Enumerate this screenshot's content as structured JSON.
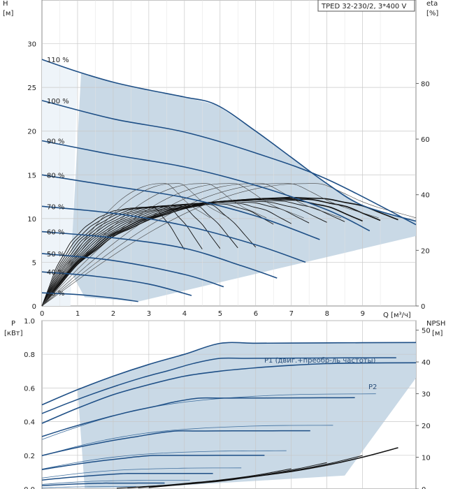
{
  "chart_data": [
    {
      "type": "line",
      "title": "TPED 32-230/2, 3*400 V",
      "y_label_top": "H",
      "y_label_unit": "[м]",
      "y2_label_top": "eta",
      "y2_label_unit": "[%]",
      "x_label": "Q [м³/ч]",
      "xlim": [
        0,
        10.5
      ],
      "ylim": [
        0,
        35
      ],
      "y2lim": [
        0,
        110
      ],
      "x_ticks": [
        0,
        1,
        2,
        3,
        4,
        5,
        6,
        7,
        8,
        9
      ],
      "y_ticks": [
        0,
        5,
        10,
        15,
        20,
        25,
        30
      ],
      "y2_ticks": [
        0,
        20,
        40,
        60,
        80
      ],
      "grid": true,
      "operating_area_color": "#c9d9e6",
      "head_curve_color": "#1e4f86",
      "eff_curve_color": "#111111",
      "series": [
        {
          "name": "110 %",
          "x": [
            0,
            1,
            2,
            3,
            4,
            4.9,
            6,
            7,
            8,
            9,
            10.5
          ],
          "y": [
            28.2,
            26.8,
            25.6,
            24.7,
            23.9,
            23.0,
            20.0,
            17.0,
            14.0,
            11.5,
            9.7
          ]
        },
        {
          "name": "100 %",
          "x": [
            0,
            2,
            4,
            6,
            8,
            10.5
          ],
          "y": [
            23.5,
            21.4,
            19.9,
            17.5,
            14.5,
            9.3
          ]
        },
        {
          "name": "90 %",
          "x": [
            0,
            2,
            4,
            6,
            8,
            9.2
          ],
          "y": [
            18.9,
            17.3,
            15.9,
            13.8,
            11.0,
            8.6
          ]
        },
        {
          "name": "80 %",
          "x": [
            0,
            2,
            4,
            6,
            7.8
          ],
          "y": [
            15.0,
            13.7,
            12.4,
            10.3,
            7.6
          ]
        },
        {
          "name": "70 %",
          "x": [
            0,
            2,
            4,
            6,
            7.4
          ],
          "y": [
            11.4,
            10.6,
            9.2,
            7.0,
            5.0
          ]
        },
        {
          "name": "60 %",
          "x": [
            0,
            2,
            4,
            5.6,
            6.6
          ],
          "y": [
            8.5,
            7.8,
            6.6,
            4.6,
            3.2
          ]
        },
        {
          "name": "50 %",
          "x": [
            0,
            2,
            4,
            5.1
          ],
          "y": [
            6.0,
            5.2,
            3.6,
            2.2
          ]
        },
        {
          "name": "40 %",
          "x": [
            0,
            1.5,
            3,
            4.2
          ],
          "y": [
            3.9,
            3.4,
            2.5,
            1.2
          ]
        },
        {
          "name": "25 %",
          "x": [
            0,
            1,
            2,
            2.7
          ],
          "y": [
            1.5,
            1.3,
            0.9,
            0.5
          ]
        }
      ],
      "efficiency_max_curve": {
        "x": [
          0,
          1,
          2,
          3,
          4,
          5,
          6,
          7,
          8,
          9,
          10
        ],
        "eta": [
          0,
          15,
          25,
          31,
          35,
          37.5,
          38.5,
          39,
          38.5,
          36,
          31
        ]
      }
    },
    {
      "type": "line",
      "y_label_top": "P",
      "y_label_unit": "[кВт]",
      "y2_label_top": "NPSH",
      "y2_label_unit": "[м]",
      "xlim": [
        0,
        10.5
      ],
      "ylim": [
        0,
        1.0
      ],
      "y2lim": [
        0,
        53
      ],
      "y_ticks": [
        0.0,
        0.2,
        0.4,
        0.6,
        0.8,
        1.0
      ],
      "y_tick_labels": [
        "0.0",
        "0.2",
        "0.4",
        "0.6",
        "0.8",
        "1.0"
      ],
      "y2_ticks": [
        0,
        10,
        20,
        30,
        40,
        50
      ],
      "annotations": [
        "P1 (двиг.+преобр-ль частоты)",
        "P2"
      ],
      "series": [
        {
          "name": "P1 (двиг.+преобр-ль частоты)",
          "x": [
            0,
            1,
            2,
            3,
            4,
            5,
            6,
            7,
            8,
            9,
            10.5
          ],
          "y": [
            0.5,
            0.59,
            0.67,
            0.74,
            0.8,
            0.865,
            0.866,
            0.867,
            0.868,
            0.869,
            0.87
          ]
        },
        {
          "name": "P2",
          "x": [
            0,
            1,
            2,
            3,
            4,
            5,
            6,
            7,
            8,
            9,
            10.5
          ],
          "y": [
            0.39,
            0.48,
            0.56,
            0.62,
            0.67,
            0.7,
            0.72,
            0.735,
            0.745,
            0.748,
            0.75
          ]
        }
      ],
      "npsh_curve": {
        "x": [
          3,
          4,
          5,
          6,
          7,
          8,
          9,
          10
        ],
        "npsh": [
          0.5,
          1.5,
          2.5,
          4,
          5.5,
          7.5,
          10,
          13
        ]
      }
    }
  ]
}
